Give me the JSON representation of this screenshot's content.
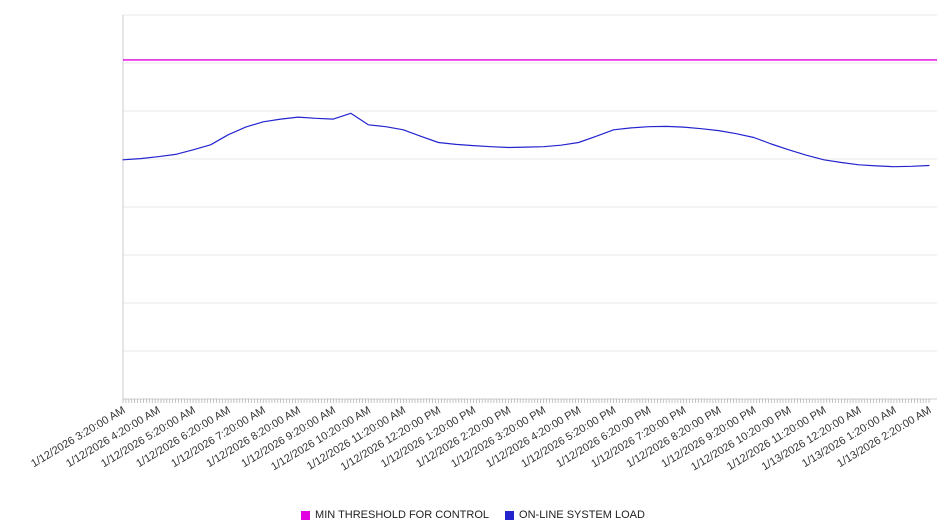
{
  "chart_data": {
    "type": "line",
    "title": "",
    "xlabel": "",
    "ylabel": "",
    "ylim": [
      0,
      100
    ],
    "y_divisions": 8,
    "grid": true,
    "legend_position": "bottom",
    "axis_colors": {
      "grid": "#e9e9e9",
      "axis": "#cccccc",
      "minor_tick": "#aaaaaa",
      "label": "#333333"
    },
    "x_labels": [
      "1/12/2026 3:20:00 AM",
      "1/12/2026 4:20:00 AM",
      "1/12/2026 5:20:00 AM",
      "1/12/2026 6:20:00 AM",
      "1/12/2026 7:20:00 AM",
      "1/12/2026 8:20:00 AM",
      "1/12/2026 9:20:00 AM",
      "1/12/2026 10:20:00 AM",
      "1/12/2026 11:20:00 AM",
      "1/12/2026 12:20:00 PM",
      "1/12/2026 1:20:00 PM",
      "1/12/2026 2:20:00 PM",
      "1/12/2026 3:20:00 PM",
      "1/12/2026 4:20:00 PM",
      "1/12/2026 5:20:00 PM",
      "1/12/2026 6:20:00 PM",
      "1/12/2026 7:20:00 PM",
      "1/12/2026 8:20:00 PM",
      "1/12/2026 9:20:00 PM",
      "1/12/2026 10:20:00 PM",
      "1/12/2026 11:20:00 PM",
      "1/13/2026 12:20:00 AM",
      "1/13/2026 1:20:00 AM",
      "1/13/2026 2:20:00 AM"
    ],
    "series": [
      {
        "name": "MIN THRESHOLD FOR CONTROL",
        "color": "#e100e1",
        "constant": 88.3
      },
      {
        "name": "ON-LINE SYSTEM LOAD",
        "color": "#2424cf",
        "values": [
          62.3,
          62.6,
          63.1,
          63.7,
          64.9,
          66.2,
          68.8,
          70.8,
          72.2,
          72.9,
          73.4,
          73.1,
          72.9,
          74.4,
          71.4,
          70.9,
          70.1,
          68.4,
          66.8,
          66.3,
          66.0,
          65.7,
          65.5,
          65.6,
          65.7,
          66.1,
          66.8,
          68.4,
          70.1,
          70.6,
          70.9,
          71.0,
          70.8,
          70.4,
          69.9,
          69.1,
          68.1,
          66.4,
          64.9,
          63.5,
          62.3,
          61.6,
          61.0,
          60.7,
          60.5,
          60.6,
          60.8
        ]
      }
    ]
  }
}
